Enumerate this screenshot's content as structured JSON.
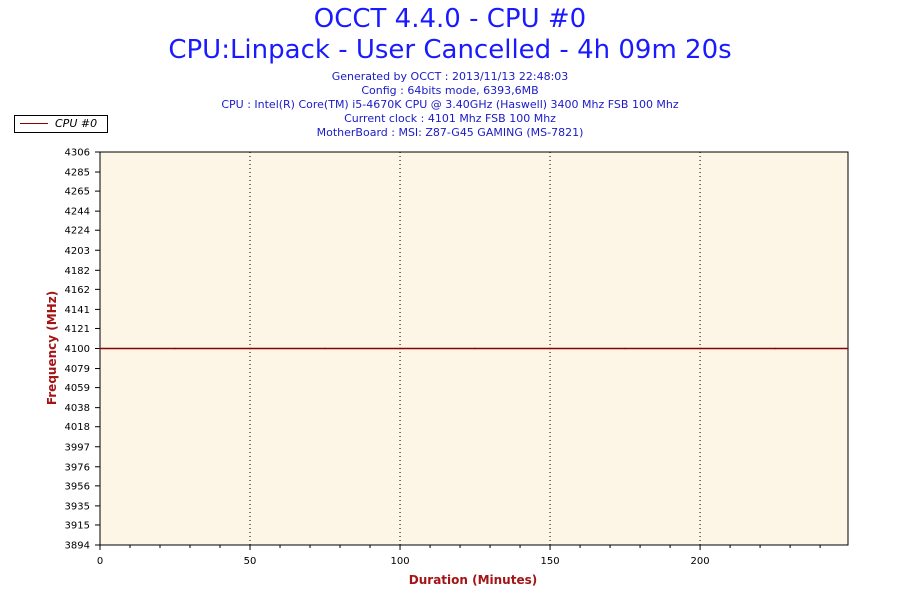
{
  "header": {
    "title": "OCCT 4.4.0 - CPU #0",
    "subtitle": "CPU:Linpack - User Cancelled - 4h 09m 20s",
    "info_lines": [
      "Generated by OCCT : 2013/11/13 22:48:03",
      "Config : 64bits mode, 6393,6MB",
      "CPU : Intel(R) Core(TM) i5-4670K CPU @ 3.40GHz (Haswell) 3400 Mhz FSB 100 Mhz",
      "Current clock : 4101 Mhz FSB 100 Mhz",
      "MotherBoard : MSI: Z87-G45 GAMING (MS-7821)"
    ]
  },
  "colors": {
    "title": "#1a1aff",
    "info": "#1a1ac8",
    "plot_background": "#fdf5e6",
    "series": "#8b0000",
    "axis_title": "#a31515"
  },
  "chart_data": {
    "type": "line",
    "xlabel": "Duration (Minutes)",
    "ylabel": "Frequency (MHz)",
    "xlim": [
      0,
      249.3
    ],
    "ylim": [
      3894,
      4306
    ],
    "x_ticks": [
      0,
      50,
      100,
      150,
      200
    ],
    "y_ticks": [
      4306,
      4285,
      4265,
      4244,
      4224,
      4203,
      4182,
      4162,
      4141,
      4121,
      4100,
      4079,
      4059,
      4038,
      4018,
      3997,
      3976,
      3956,
      3935,
      3915,
      3894
    ],
    "grid": "vertical dotted at major x ticks",
    "legend_position": "top-left",
    "series": [
      {
        "name": "CPU #0",
        "x": [
          0,
          25,
          50,
          75,
          100,
          125,
          150,
          175,
          200,
          225,
          249.3
        ],
        "values": [
          4100,
          4100,
          4100,
          4100,
          4100,
          4100,
          4100,
          4100,
          4100,
          4100,
          4100
        ]
      }
    ]
  }
}
